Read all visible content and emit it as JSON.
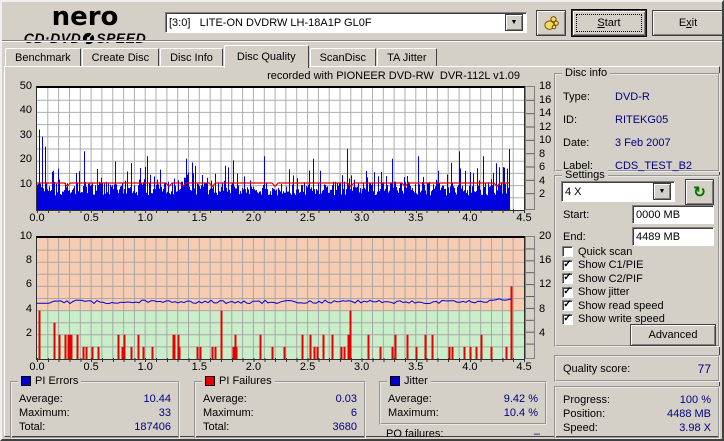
{
  "titlebar": {
    "logo_top": "nero",
    "logo_bottom_left": "CD·DVD",
    "logo_bottom_right": "SPEED",
    "drive_select": "[3:0]   LITE-ON DVDRW LH-18A1P GL0F",
    "start_button": {
      "label": "Start",
      "accel_index": 0
    },
    "exit_button": {
      "label": "Exit",
      "accel_index": 1
    }
  },
  "tabs": [
    {
      "label": "Benchmark",
      "active": false
    },
    {
      "label": "Create Disc",
      "active": false
    },
    {
      "label": "Disc Info",
      "active": false
    },
    {
      "label": "Disc Quality",
      "active": true
    },
    {
      "label": "ScanDisc",
      "active": false
    },
    {
      "label": "TA Jitter",
      "active": false
    }
  ],
  "chart_data": [
    {
      "type": "area",
      "name": "pi-errors-and-write-speed",
      "title": "recorded with PIONEER DVD-RW  DVR-112L v1.09",
      "x_range": [
        0,
        4.5
      ],
      "x_ticks": [
        "0.0",
        "0.5",
        "1.0",
        "1.5",
        "2.0",
        "2.5",
        "3.0",
        "3.5",
        "4.0",
        "4.5"
      ],
      "grid": true,
      "left_axis": {
        "series": "PI Errors",
        "range": [
          0,
          50
        ],
        "labels": [
          50,
          40,
          30,
          20,
          10
        ]
      },
      "right_axis": {
        "series": "Speed (X)",
        "range": [
          0,
          18
        ],
        "labels": [
          18,
          16,
          14,
          12,
          10,
          8,
          6,
          4,
          2
        ]
      },
      "data_end_x": 4.37,
      "pi_trace": {
        "color": "#0000dd",
        "average": 10.44,
        "maximum": 33,
        "total": 187406,
        "seed": 1234567,
        "base": 8.8,
        "noise": 2.8,
        "spike_chance": 0.24,
        "spike_extra": 9.5,
        "big_spikes": [
          [
            0.015,
            33
          ],
          [
            0.045,
            30
          ],
          [
            0.07,
            26
          ],
          [
            0.43,
            24
          ],
          [
            1.02,
            22
          ],
          [
            1.38,
            21
          ],
          [
            2.1,
            22
          ],
          [
            2.55,
            21
          ],
          [
            2.86,
            25
          ],
          [
            3.28,
            21
          ],
          [
            3.52,
            22
          ],
          [
            3.9,
            24
          ],
          [
            4.12,
            22
          ],
          [
            4.36,
            25
          ]
        ]
      },
      "speed_trace": {
        "color": "#e00000",
        "value_x": 3.98,
        "dips": [
          0.28,
          1.22,
          1.35,
          1.62,
          2.2,
          2.9,
          3.4,
          4.25
        ]
      }
    },
    {
      "type": "bars+line",
      "name": "pi-failures-and-jitter",
      "x_range": [
        0,
        4.5
      ],
      "x_ticks": [
        "0.0",
        "0.5",
        "1.0",
        "1.5",
        "2.0",
        "2.5",
        "3.0",
        "3.5",
        "4.0",
        "4.5"
      ],
      "grid": true,
      "left_axis": {
        "series": "PI Failures",
        "range": [
          0,
          10
        ],
        "labels": [
          10,
          8,
          6,
          4,
          2
        ]
      },
      "right_axis": {
        "series": "Jitter %",
        "range": [
          0,
          20
        ],
        "labels": [
          20,
          16,
          12,
          8,
          4
        ]
      },
      "zones": {
        "green_below_left_value": 4,
        "green_color": "#c9eec9",
        "warn_color": "#f6cdb2"
      },
      "data_end_x": 4.38,
      "bars": {
        "color": "#e80000",
        "average": 0.03,
        "maximum": 6,
        "total": 3680,
        "seed": 424242,
        "chance": 0.3,
        "big": [
          [
            0.02,
            4
          ],
          [
            0.16,
            3
          ],
          [
            0.3,
            2
          ],
          [
            0.31,
            2
          ],
          [
            0.75,
            2
          ],
          [
            0.8,
            2
          ],
          [
            0.93,
            2
          ],
          [
            1.27,
            2
          ],
          [
            1.3,
            2
          ],
          [
            1.83,
            2
          ],
          [
            2.52,
            2
          ],
          [
            2.64,
            2
          ],
          [
            2.87,
            2
          ],
          [
            3.42,
            2
          ],
          [
            3.65,
            2
          ],
          [
            4.1,
            2
          ],
          [
            4.38,
            6
          ]
        ]
      },
      "jitter_trace": {
        "color": "#0000dd",
        "average_pct": 9.42,
        "maximum_pct": 10.4,
        "seed": 9898,
        "base_pct": 9.45,
        "noise": 0.28
      }
    }
  ],
  "disc_info": {
    "title": "Disc info",
    "rows": [
      {
        "label": "Type:",
        "value": "DVD-R"
      },
      {
        "label": "ID:",
        "value": "RITEKG05"
      },
      {
        "label": "Date:",
        "value": "3 Feb 2007"
      },
      {
        "label": "Label:",
        "value": "CDS_TEST_B2"
      }
    ]
  },
  "settings": {
    "title": "Settings",
    "speed_select": "4 X",
    "start_label": "Start:",
    "start_value": "0000 MB",
    "end_label": "End:",
    "end_value": "4489 MB",
    "checkboxes": [
      {
        "label": "Quick scan",
        "checked": false
      },
      {
        "label": "Show C1/PIE",
        "checked": true
      },
      {
        "label": "Show C2/PIF",
        "checked": true
      },
      {
        "label": "Show jitter",
        "checked": true
      },
      {
        "label": "Show read speed",
        "checked": true
      },
      {
        "label": "Show write speed",
        "checked": true
      }
    ],
    "advanced_button": "Advanced"
  },
  "quality": {
    "label": "Quality score:",
    "value": "77"
  },
  "progress": {
    "rows": [
      {
        "label": "Progress:",
        "value": "100 %"
      },
      {
        "label": "Position:",
        "value": "4488 MB"
      },
      {
        "label": "Speed:",
        "value": "3.98 X"
      }
    ]
  },
  "stats": {
    "pi_errors": {
      "title": "PI Errors",
      "color": "#0000cc",
      "rows": [
        {
          "label": "Average:",
          "value": "10.44"
        },
        {
          "label": "Maximum:",
          "value": "33"
        },
        {
          "label": "Total:",
          "value": "187406"
        }
      ]
    },
    "pi_failures": {
      "title": "PI Failures",
      "color": "#e80000",
      "rows": [
        {
          "label": "Average:",
          "value": "0.03"
        },
        {
          "label": "Maximum:",
          "value": "6"
        },
        {
          "label": "Total:",
          "value": "3680"
        }
      ]
    },
    "jitter": {
      "title": "Jitter",
      "color": "#0000cc",
      "rows": [
        {
          "label": "Average:",
          "value": "9.42 %"
        },
        {
          "label": "Maximum:",
          "value": "10.4 %"
        }
      ]
    },
    "po_failures": {
      "label": "PO failures:",
      "value": "–"
    }
  }
}
